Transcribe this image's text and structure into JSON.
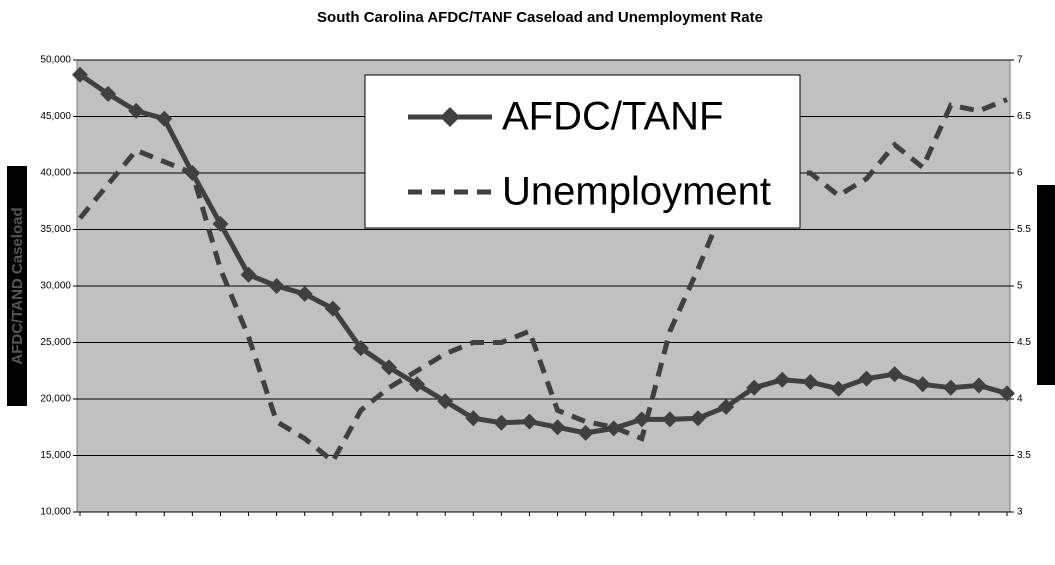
{
  "chart_data": {
    "type": "line",
    "title": "South Carolina AFDC/TANF Caseload and Unemployment Rate",
    "y_label": "AFDC/TAND Caseload",
    "categories": [
      null,
      null,
      null,
      null,
      null,
      null,
      null,
      null,
      null,
      null,
      null,
      null,
      null,
      null,
      null,
      null,
      null,
      null,
      null,
      null,
      null,
      null,
      null,
      null,
      null,
      null,
      null,
      null,
      null,
      null,
      null,
      null,
      null,
      null
    ],
    "series": [
      {
        "name": "AFDC/TANF",
        "color": "#404040",
        "marker": "diamond",
        "dash": false,
        "values": [
          48700,
          47000,
          45500,
          44800,
          40000,
          35500,
          31000,
          30000,
          29300,
          28000,
          24500,
          22800,
          21300,
          19800,
          18300,
          17900,
          18000,
          17500,
          17000,
          17400,
          18200,
          18200,
          18300,
          19300,
          21000,
          21700,
          21500,
          20900,
          21800,
          22200,
          21300,
          21000,
          21200,
          20500
        ]
      },
      {
        "name": "Unemployment",
        "color": "#404040",
        "axis": "y2",
        "dash": true,
        "values": [
          5.6,
          5.9,
          6.2,
          6.1,
          6.0,
          5.15,
          4.55,
          3.8,
          3.65,
          3.45,
          3.9,
          4.1,
          4.25,
          4.4,
          4.5,
          4.5,
          4.6,
          3.9,
          3.8,
          3.75,
          3.65,
          4.6,
          5.15,
          5.75,
          5.85,
          6.0,
          6.0,
          5.8,
          5.95,
          6.25,
          6.05,
          6.6,
          6.55,
          6.65
        ]
      }
    ],
    "ylim": [
      10000,
      50000
    ],
    "yticks": [
      {
        "value": 10000,
        "label": "10,000"
      },
      {
        "value": 15000,
        "label": "15,000"
      },
      {
        "value": 20000,
        "label": "20,000"
      },
      {
        "value": 25000,
        "label": "25,000"
      },
      {
        "value": 30000,
        "label": "30,000"
      },
      {
        "value": 35000,
        "label": "35,000"
      },
      {
        "value": 40000,
        "label": "40,000"
      },
      {
        "value": 45000,
        "label": "45,000"
      },
      {
        "value": 50000,
        "label": "50,000"
      }
    ],
    "y2lim": [
      3,
      7
    ],
    "y2ticks": [
      3,
      3.5,
      4,
      4.5,
      5,
      5.5,
      6,
      6.5,
      7
    ],
    "grid": true,
    "background": "#c0c0c0"
  }
}
